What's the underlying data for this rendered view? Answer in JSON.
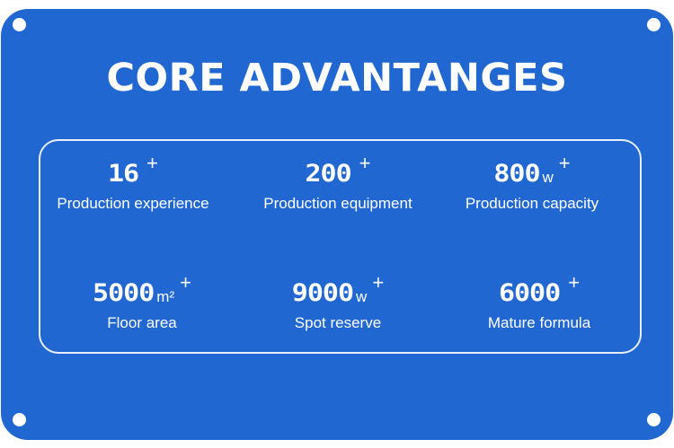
{
  "title": "CORE ADVANTANGES",
  "items": [
    {
      "value": "16",
      "unit": "",
      "suffix": "+",
      "label": "Production experience"
    },
    {
      "value": "200",
      "unit": "",
      "suffix": "+",
      "label": "Production equipment"
    },
    {
      "value": "800",
      "unit": "w",
      "suffix": "+",
      "label": "Production capacity"
    },
    {
      "value": "5000",
      "unit": "m²",
      "suffix": "+",
      "label": "Floor area"
    },
    {
      "value": "9000",
      "unit": "w",
      "suffix": "+",
      "label": "Spot reserve"
    },
    {
      "value": "6000",
      "unit": "",
      "suffix": "+",
      "label": "Mature formula"
    }
  ],
  "colors": {
    "background": "#2167d2",
    "text": "#ffffff"
  }
}
